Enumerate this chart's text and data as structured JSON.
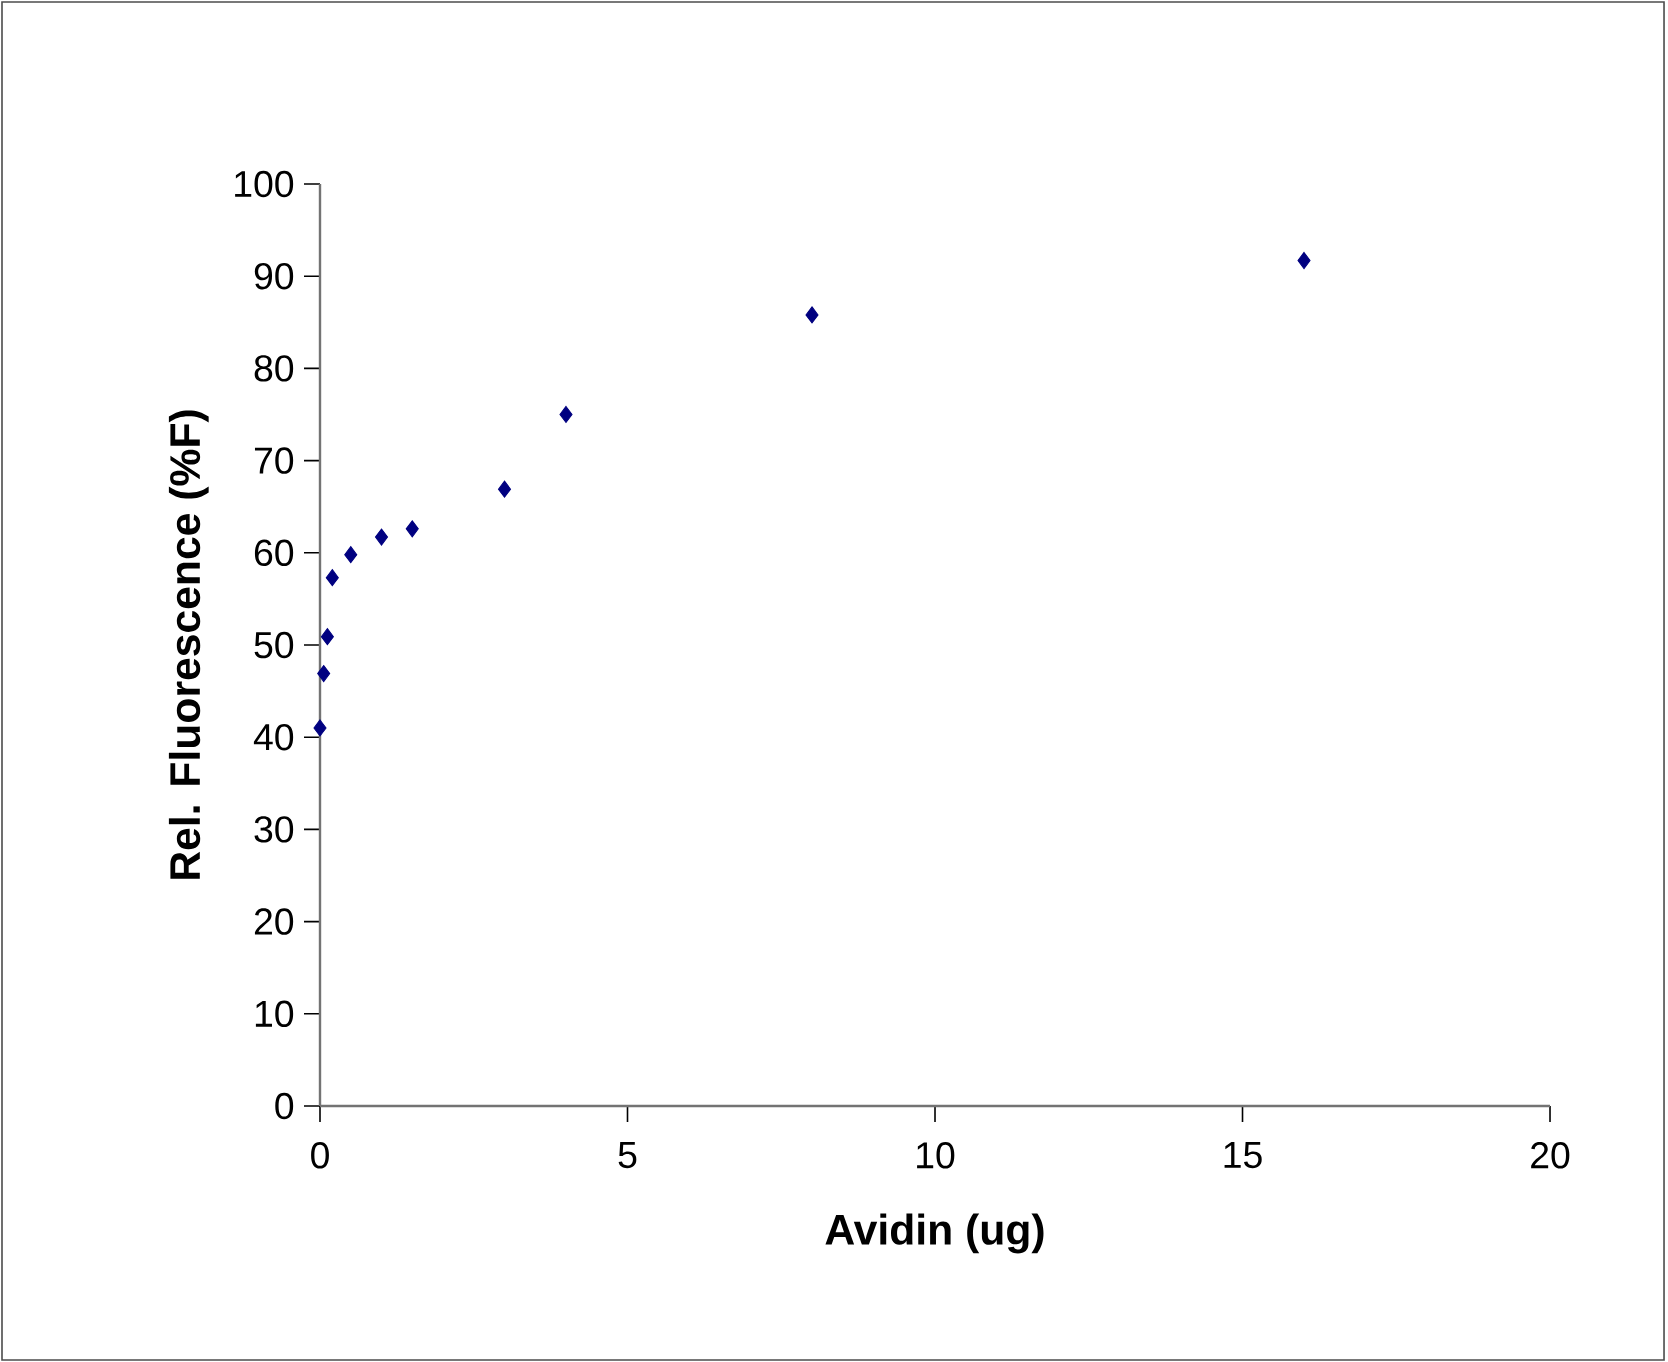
{
  "chart_data": {
    "type": "scatter",
    "xlabel": "Avidin (ug)",
    "ylabel": "Rel. Fluorescence (%F)",
    "x": [
      0,
      0.06,
      0.12,
      0.2,
      0.5,
      1,
      1.5,
      3,
      4,
      8,
      16
    ],
    "values": [
      41.0,
      46.9,
      50.9,
      57.3,
      59.8,
      61.7,
      62.6,
      66.9,
      75.0,
      85.8,
      91.7
    ],
    "color": "#000080",
    "marker": "diamond",
    "xlim": [
      0,
      20
    ],
    "xticks": [
      0,
      5,
      10,
      15,
      20
    ],
    "ylim": [
      0,
      100
    ],
    "yticks": [
      0,
      10,
      20,
      30,
      40,
      50,
      60,
      70,
      80,
      90,
      100
    ]
  }
}
